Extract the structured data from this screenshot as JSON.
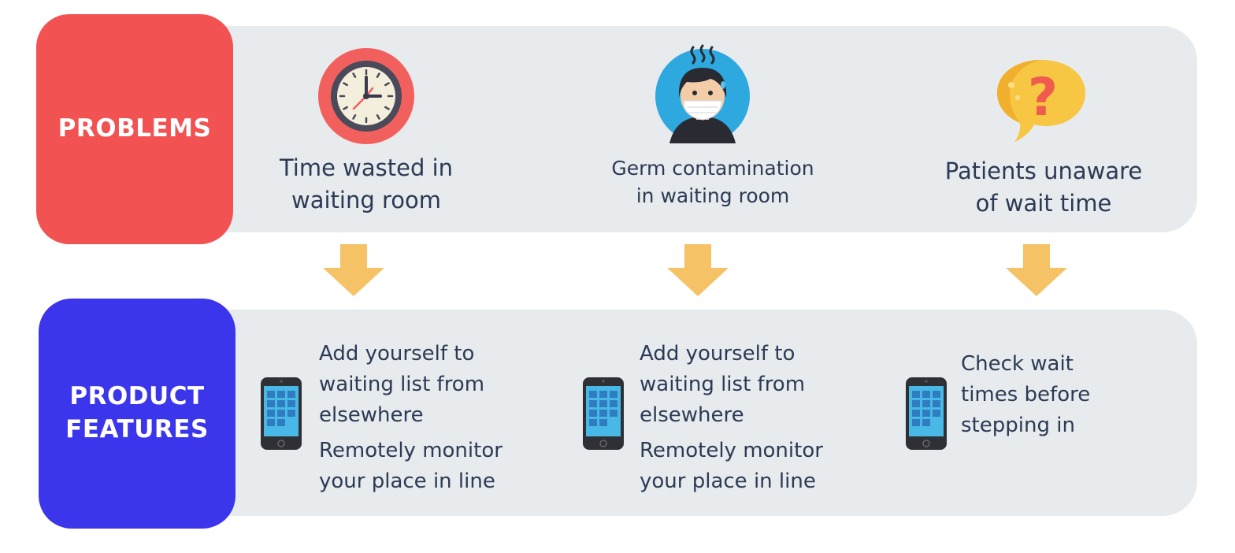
{
  "problems": {
    "label": "PROBLEMS",
    "items": [
      {
        "icon": "clock-icon",
        "line1": "Time wasted in",
        "line2": "waiting room"
      },
      {
        "icon": "masked-person-icon",
        "line1": "Germ contamination",
        "line2": "in waiting room"
      },
      {
        "icon": "question-bubble-icon",
        "line1": "Patients unaware",
        "line2": "of wait time"
      }
    ]
  },
  "features": {
    "label_line1": "PRODUCT",
    "label_line2": "FEATURES",
    "items": [
      {
        "icon": "phone-icon",
        "lines": [
          "Add yourself to",
          "waiting list from",
          "elsewhere"
        ],
        "extra": [
          "Remotely monitor",
          "your place in line"
        ]
      },
      {
        "icon": "phone-icon",
        "lines": [
          "Add yourself to",
          "waiting list from",
          "elsewhere"
        ],
        "extra": [
          "Remotely monitor",
          "your place in line"
        ]
      },
      {
        "icon": "phone-icon",
        "lines": [
          "Check wait",
          "times before",
          "stepping in"
        ]
      }
    ]
  },
  "colors": {
    "problems_label": "#f25252",
    "features_label": "#3b35ec",
    "band": "#e8ebed",
    "arrow": "#f5c265",
    "text": "#2b3a55"
  }
}
